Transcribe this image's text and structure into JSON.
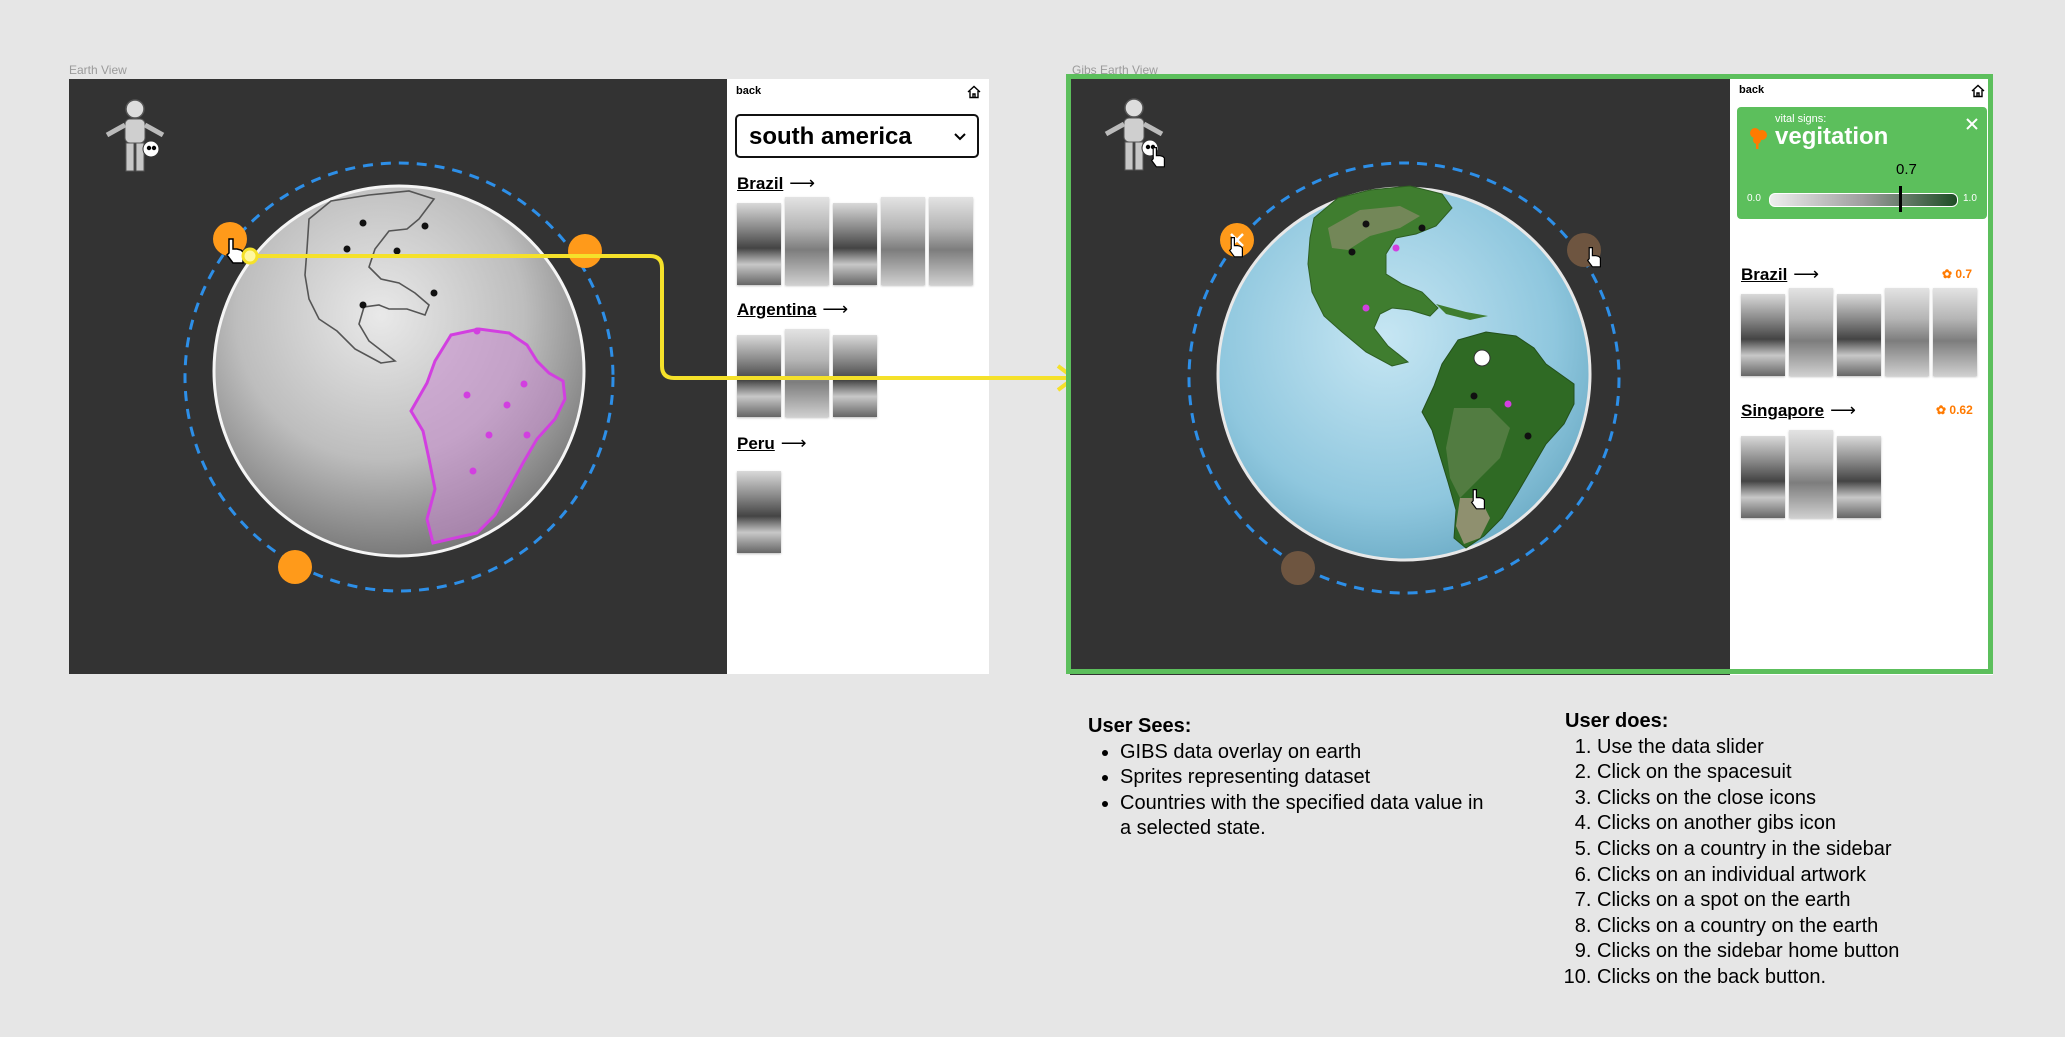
{
  "frames": {
    "earth_view": {
      "label": "Earth View",
      "sidebar": {
        "back": "back",
        "region": "south america",
        "countries": [
          {
            "name": "Brazil",
            "arrow": "⟶",
            "thumb_count": 5
          },
          {
            "name": "Argentina",
            "arrow": "⟶",
            "thumb_count": 3
          },
          {
            "name": "Peru",
            "arrow": "⟶",
            "thumb_count": 1
          }
        ]
      }
    },
    "gibs_view": {
      "label": "Gibs Earth View",
      "sidebar": {
        "back": "back",
        "vital": {
          "subtitle": "vital signs:",
          "title": "vegitation",
          "value": "0.7",
          "min": "0.0",
          "max": "1.0",
          "level": 0.7
        },
        "countries": [
          {
            "name": "Brazil",
            "arrow": "⟶",
            "score": "0.7",
            "thumb_count": 5
          },
          {
            "name": "Singapore",
            "arrow": "⟶",
            "score": "0.62",
            "thumb_count": 3
          }
        ]
      }
    }
  },
  "notes": {
    "user_sees": {
      "heading": "User Sees:",
      "items": [
        "GIBS data overlay on earth",
        "Sprites representing dataset",
        "Countries with the specified data value in a selected state."
      ]
    },
    "user_does": {
      "heading": "User does:",
      "items": [
        "Use the data slider",
        "Click on the spacesuit",
        "Clicks on the close icons",
        "Clicks on another gibs icon",
        "Clicks on a country in the sidebar",
        "Clicks on an individual artwork",
        "Clicks on a spot on the earth",
        "Clicks on a country on the earth",
        "Clicks on the sidebar home button",
        "Clicks on the back button."
      ]
    }
  },
  "colors": {
    "frame_highlight": "#5cbf5c",
    "connector": "#f5e12a",
    "orbit": "#2d8fe8",
    "sprite": "#ff9a1a",
    "sprite_inactive": "#6e5540",
    "selection": "#d23fe0",
    "score": "#ff7a00"
  },
  "icons": [
    "astronaut-icon",
    "home-icon",
    "chevron-down-icon",
    "hand-cursor-icon",
    "close-icon",
    "vegetation-icon"
  ]
}
